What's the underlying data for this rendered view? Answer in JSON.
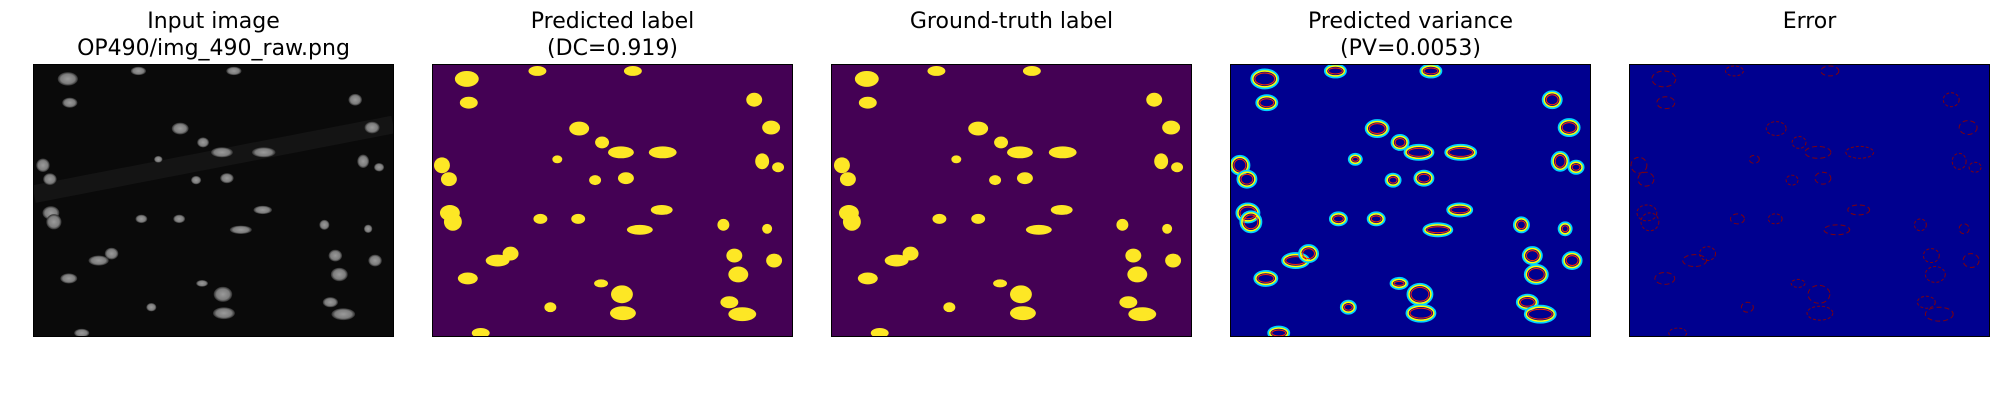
{
  "panels": [
    {
      "id": "input",
      "title_line1": "Input image",
      "title_line2": "OP490/img_490_raw.png"
    },
    {
      "id": "predicted",
      "title_line1": "Predicted label",
      "title_line2": "(DC=0.919)"
    },
    {
      "id": "groundtruth",
      "title_line1": "",
      "title_line2": "Ground-truth label"
    },
    {
      "id": "variance",
      "title_line1": "Predicted variance",
      "title_line2": "(PV=0.0053)"
    },
    {
      "id": "error",
      "title_line1": "",
      "title_line2": "Error"
    }
  ],
  "colors": {
    "input_bg": "#0a0a0a",
    "input_nucleus": "#7d7d7d",
    "label_bg": "#440154",
    "label_fg": "#fde725",
    "variance_bg": "#00008f",
    "variance_ring_outer": "#00d4ff",
    "variance_ring_mid": "#ffff00",
    "variance_ring_inner": "#ff2a00",
    "error_bg": "#00008f",
    "error_ring": "#8b0000"
  }
}
